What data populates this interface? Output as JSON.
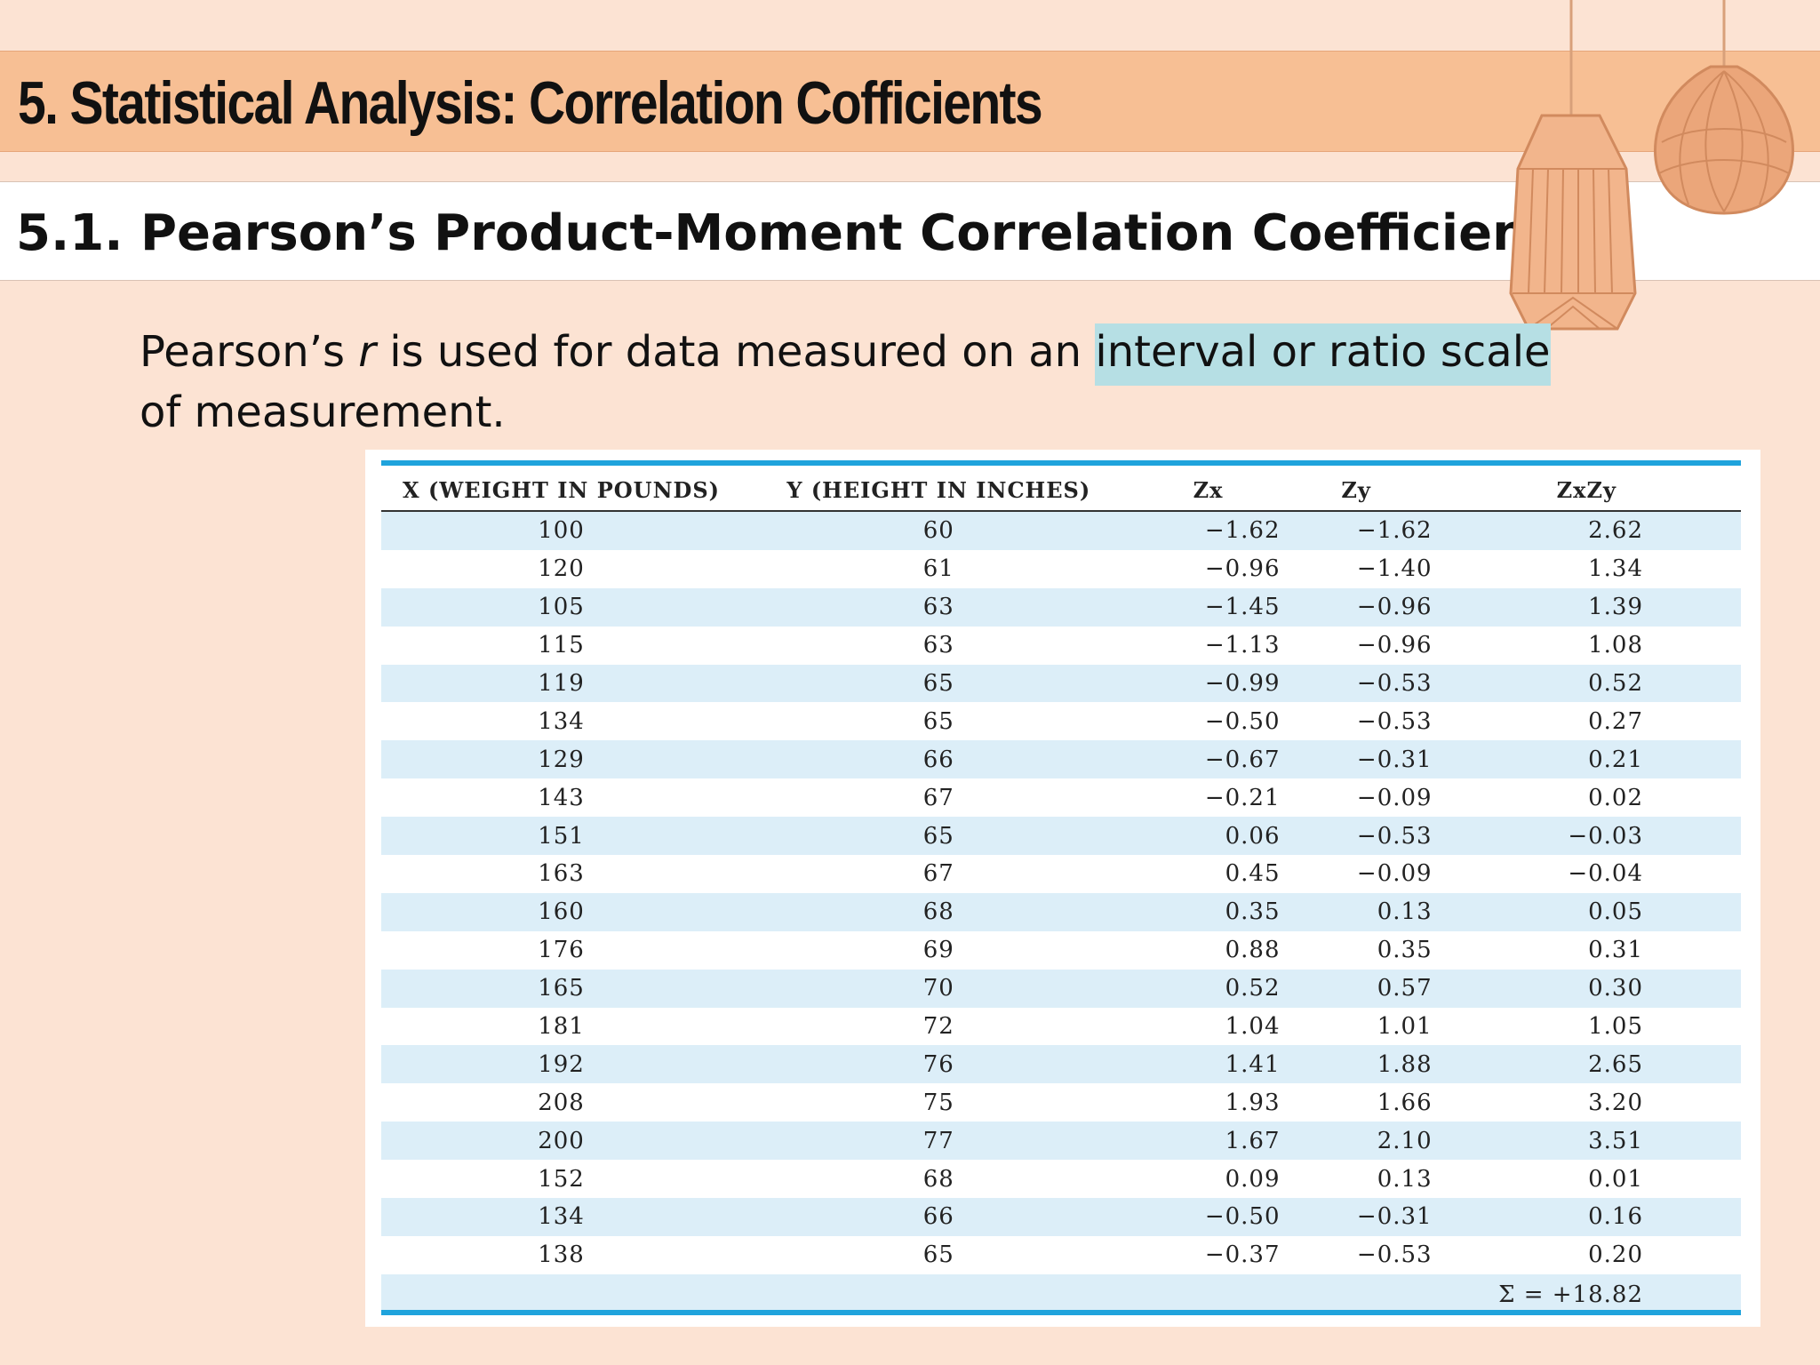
{
  "title": "5. Statistical Analysis: Correlation Cofficients",
  "subtitle": "5.1. Pearson’s Product-Moment Correlation Coefficient:",
  "body": {
    "before": "Pearson’s ",
    "italic": "r",
    "middle": " is used for data measured on an ",
    "highlight": "interval or ratio scale",
    "after": " of measurement."
  },
  "table": {
    "headers": [
      "X (WEIGHT IN POUNDS)",
      "Y (HEIGHT IN INCHES)",
      "Zx",
      "Zy",
      "ZxZy"
    ],
    "rows": [
      [
        "100",
        "60",
        "−1.62",
        "−1.62",
        "2.62"
      ],
      [
        "120",
        "61",
        "−0.96",
        "−1.40",
        "1.34"
      ],
      [
        "105",
        "63",
        "−1.45",
        "−0.96",
        "1.39"
      ],
      [
        "115",
        "63",
        "−1.13",
        "−0.96",
        "1.08"
      ],
      [
        "119",
        "65",
        "−0.99",
        "−0.53",
        "0.52"
      ],
      [
        "134",
        "65",
        "−0.50",
        "−0.53",
        "0.27"
      ],
      [
        "129",
        "66",
        "−0.67",
        "−0.31",
        "0.21"
      ],
      [
        "143",
        "67",
        "−0.21",
        "−0.09",
        "0.02"
      ],
      [
        "151",
        "65",
        "0.06",
        "−0.53",
        "−0.03"
      ],
      [
        "163",
        "67",
        "0.45",
        "−0.09",
        "−0.04"
      ],
      [
        "160",
        "68",
        "0.35",
        "0.13",
        "0.05"
      ],
      [
        "176",
        "69",
        "0.88",
        "0.35",
        "0.31"
      ],
      [
        "165",
        "70",
        "0.52",
        "0.57",
        "0.30"
      ],
      [
        "181",
        "72",
        "1.04",
        "1.01",
        "1.05"
      ],
      [
        "192",
        "76",
        "1.41",
        "1.88",
        "2.65"
      ],
      [
        "208",
        "75",
        "1.93",
        "1.66",
        "3.20"
      ],
      [
        "200",
        "77",
        "1.67",
        "2.10",
        "3.51"
      ],
      [
        "152",
        "68",
        "0.09",
        "0.13",
        "0.01"
      ],
      [
        "134",
        "66",
        "−0.50",
        "−0.31",
        "0.16"
      ],
      [
        "138",
        "65",
        "−0.37",
        "−0.53",
        "0.20"
      ]
    ],
    "sum": "Σ = +18.82"
  },
  "colors": {
    "background": "#fce3d3",
    "title_bar": "#f7bf94",
    "highlight": "#b6dfe4",
    "table_rule": "#1fa3dc",
    "row_stripe": "#dceef8"
  },
  "decor": [
    "pendant-lamp-icon",
    "pendant-lamp-icon"
  ]
}
